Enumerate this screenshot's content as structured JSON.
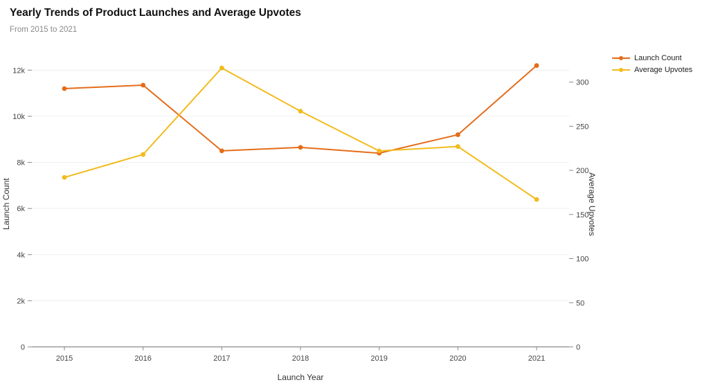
{
  "header": {
    "title": "Yearly Trends of Product Launches and Average Upvotes",
    "subtitle": "From 2015 to 2021"
  },
  "chart_data": {
    "type": "line",
    "x": [
      "2015",
      "2016",
      "2017",
      "2018",
      "2019",
      "2020",
      "2021"
    ],
    "series": [
      {
        "name": "Launch Count",
        "axis": "left",
        "color": "#e46c19",
        "values": [
          11200,
          11350,
          8500,
          8650,
          8400,
          9200,
          12200
        ]
      },
      {
        "name": "Average Upvotes",
        "axis": "right",
        "color": "#f2bb1d",
        "values": [
          192,
          218,
          316,
          267,
          222,
          227,
          167
        ]
      }
    ],
    "xlabel": "Launch Year",
    "ylabel_left": "Launch Count",
    "ylabel_right": "Average Upvotes",
    "ylim_left": [
      0,
      12400
    ],
    "ylim_right": [
      0,
      324
    ],
    "yticks_left": [
      {
        "value": 0,
        "label": "0"
      },
      {
        "value": 2000,
        "label": "2k"
      },
      {
        "value": 4000,
        "label": "4k"
      },
      {
        "value": 6000,
        "label": "6k"
      },
      {
        "value": 8000,
        "label": "8k"
      },
      {
        "value": 10000,
        "label": "10k"
      },
      {
        "value": 12000,
        "label": "12k"
      }
    ],
    "yticks_right": [
      {
        "value": 0,
        "label": "0"
      },
      {
        "value": 50,
        "label": "50"
      },
      {
        "value": 100,
        "label": "100"
      },
      {
        "value": 150,
        "label": "150"
      },
      {
        "value": 200,
        "label": "200"
      },
      {
        "value": 250,
        "label": "250"
      },
      {
        "value": 300,
        "label": "300"
      }
    ],
    "legend_position": "top-right",
    "grid": "horizontal-light",
    "colors": {
      "axis_line": "#888888",
      "grid_line": "#efefef",
      "tick_text": "#444444"
    }
  }
}
